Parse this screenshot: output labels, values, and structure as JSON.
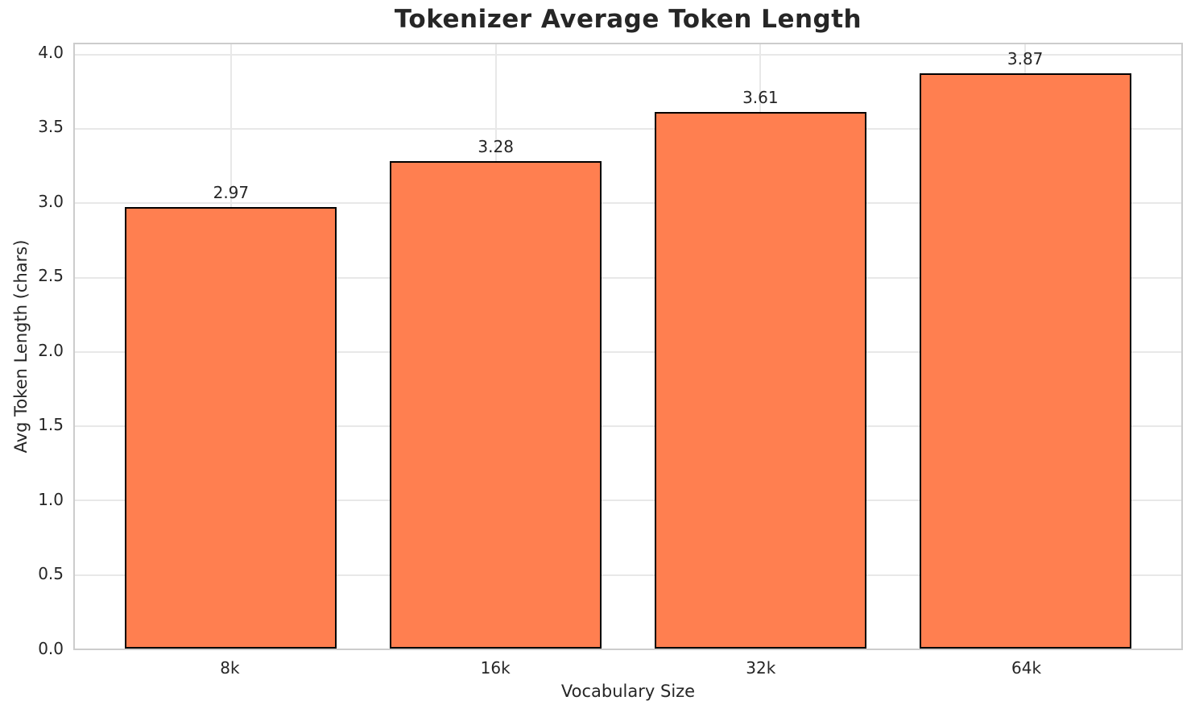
{
  "chart_data": {
    "type": "bar",
    "title": "Tokenizer Average Token Length",
    "xlabel": "Vocabulary Size",
    "ylabel": "Avg Token Length (chars)",
    "categories": [
      "8k",
      "16k",
      "32k",
      "64k"
    ],
    "values": [
      2.97,
      3.28,
      3.61,
      3.87
    ],
    "bar_labels": [
      "2.97",
      "3.28",
      "3.61",
      "3.87"
    ],
    "yticks": [
      0.0,
      0.5,
      1.0,
      1.5,
      2.0,
      2.5,
      3.0,
      3.5,
      4.0
    ],
    "ytick_labels": [
      "0.0",
      "0.5",
      "1.0",
      "1.5",
      "2.0",
      "2.5",
      "3.0",
      "3.5",
      "4.0"
    ],
    "ylim": [
      0,
      4.06
    ],
    "grid": true,
    "legend_position": "none",
    "colors": {
      "bar_fill": "#FF7F50",
      "bar_edge": "#000000",
      "gridline": "#e8e8e8",
      "spine": "#cccccc",
      "text": "#262626",
      "background": "#ffffff"
    }
  }
}
